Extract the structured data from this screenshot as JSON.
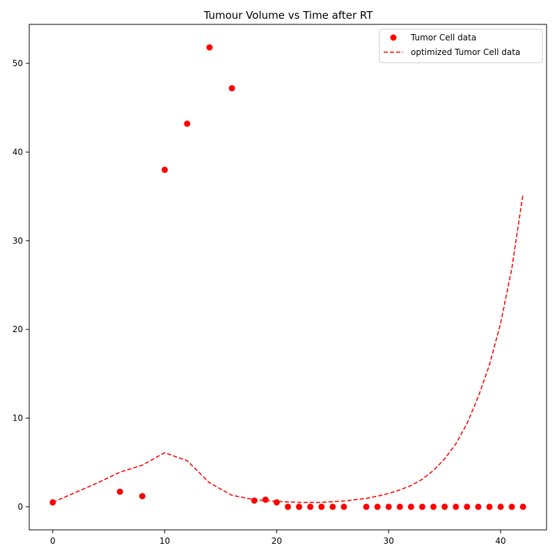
{
  "chart_data": {
    "type": "scatter",
    "title": "Tumour Volume vs Time after RT",
    "xlabel": "",
    "ylabel": "",
    "xlim": [
      -2.1,
      44.1
    ],
    "ylim": [
      -2.6,
      54.4
    ],
    "xticks": [
      0,
      10,
      20,
      30,
      40
    ],
    "yticks": [
      0,
      10,
      20,
      30,
      40,
      50
    ],
    "grid": false,
    "legend_position": "top-right",
    "series": [
      {
        "name": "Tumor Cell data",
        "kind": "scatter",
        "color": "#ff0000",
        "x": [
          0,
          6,
          8,
          10,
          12,
          14,
          16,
          18,
          19,
          20,
          21,
          22,
          23,
          24,
          25,
          26,
          28,
          29,
          30,
          31,
          32,
          33,
          34,
          35,
          36,
          37,
          38,
          39,
          40,
          41,
          42
        ],
        "y": [
          0.5,
          1.7,
          1.2,
          38.0,
          43.2,
          51.8,
          47.2,
          0.7,
          0.8,
          0.5,
          0.0,
          0.0,
          0.0,
          0.0,
          0.0,
          0.0,
          0.0,
          0.0,
          0.0,
          0.0,
          0.0,
          0.0,
          0.0,
          0.0,
          0.0,
          0.0,
          0.0,
          0.0,
          0.0,
          0.0,
          0.0
        ]
      },
      {
        "name": "optimized Tumor Cell data",
        "kind": "line",
        "style": "dashed",
        "color": "#ff0000",
        "x": [
          0,
          2,
          4,
          6,
          8,
          10,
          12,
          14,
          16,
          18,
          20,
          22,
          24,
          26,
          28,
          29,
          30,
          31,
          32,
          33,
          34,
          35,
          36,
          37,
          38,
          39,
          40,
          41,
          42
        ],
        "y": [
          0.5,
          1.6,
          2.7,
          3.9,
          4.7,
          6.1,
          5.2,
          2.7,
          1.3,
          0.8,
          0.6,
          0.5,
          0.5,
          0.65,
          0.95,
          1.2,
          1.5,
          1.9,
          2.4,
          3.1,
          4.1,
          5.4,
          7.1,
          9.4,
          12.4,
          16.0,
          20.7,
          26.9,
          35.3
        ]
      }
    ]
  }
}
